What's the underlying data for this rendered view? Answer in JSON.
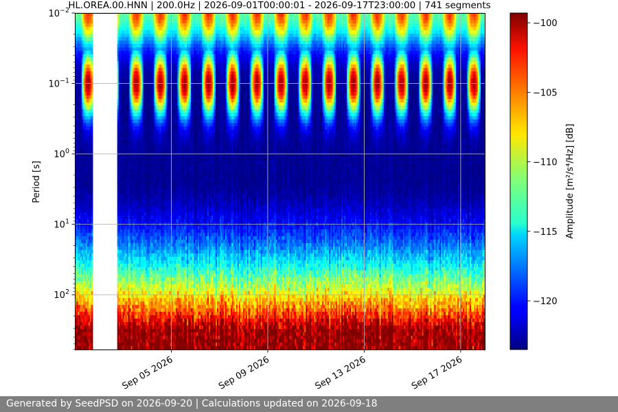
{
  "chart_data": {
    "type": "heatmap",
    "title": "HL.OREA.00.HNN | 200.0Hz | 2026-09-01T00:00:01 - 2026-09-17T23:00:00 | 741 segments",
    "ylabel": "Period [s]",
    "colorbar_label": "Amplitude [m²/s⁴/Hz] [dB]",
    "x_range": [
      "2026-09-01T00:00:00",
      "2026-09-18T00:00:00"
    ],
    "y_scale": "log",
    "y_range": [
      0.01,
      600
    ],
    "y_inverted": true,
    "color_range": [
      -123.5,
      -99.3
    ],
    "colormap": "jet",
    "grid": true,
    "x_ticks": [
      {
        "value": "2026-09-05",
        "label": "Sep 05 2026"
      },
      {
        "value": "2026-09-09",
        "label": "Sep 09 2026"
      },
      {
        "value": "2026-09-13",
        "label": "Sep 13 2026"
      },
      {
        "value": "2026-09-17",
        "label": "Sep 17 2026"
      }
    ],
    "y_ticks": [
      {
        "value": 0.01,
        "base": "10",
        "exp": "−2"
      },
      {
        "value": 0.1,
        "base": "10",
        "exp": "−1"
      },
      {
        "value": 1,
        "base": "10",
        "exp": "0"
      },
      {
        "value": 10,
        "base": "10",
        "exp": "1"
      },
      {
        "value": 100,
        "base": "10",
        "exp": "2"
      }
    ],
    "colorbar_ticks": [
      {
        "value": -100,
        "label": "−100"
      },
      {
        "value": -105,
        "label": "−105"
      },
      {
        "value": -110,
        "label": "−110"
      },
      {
        "value": -115,
        "label": "−115"
      },
      {
        "value": -120,
        "label": "−120"
      }
    ],
    "data_gap": [
      "2026-09-01T18:00:00",
      "2026-09-02T18:00:00"
    ],
    "daily_peak_period": 0.1,
    "daily_peak_amplitude": -100,
    "microseism_amplitude": -123,
    "long_period_amplitude": -99.5
  },
  "footer": {
    "text": "Generated by SeedPSD on 2026-09-20 | Calculations updated on 2026-09-18"
  }
}
